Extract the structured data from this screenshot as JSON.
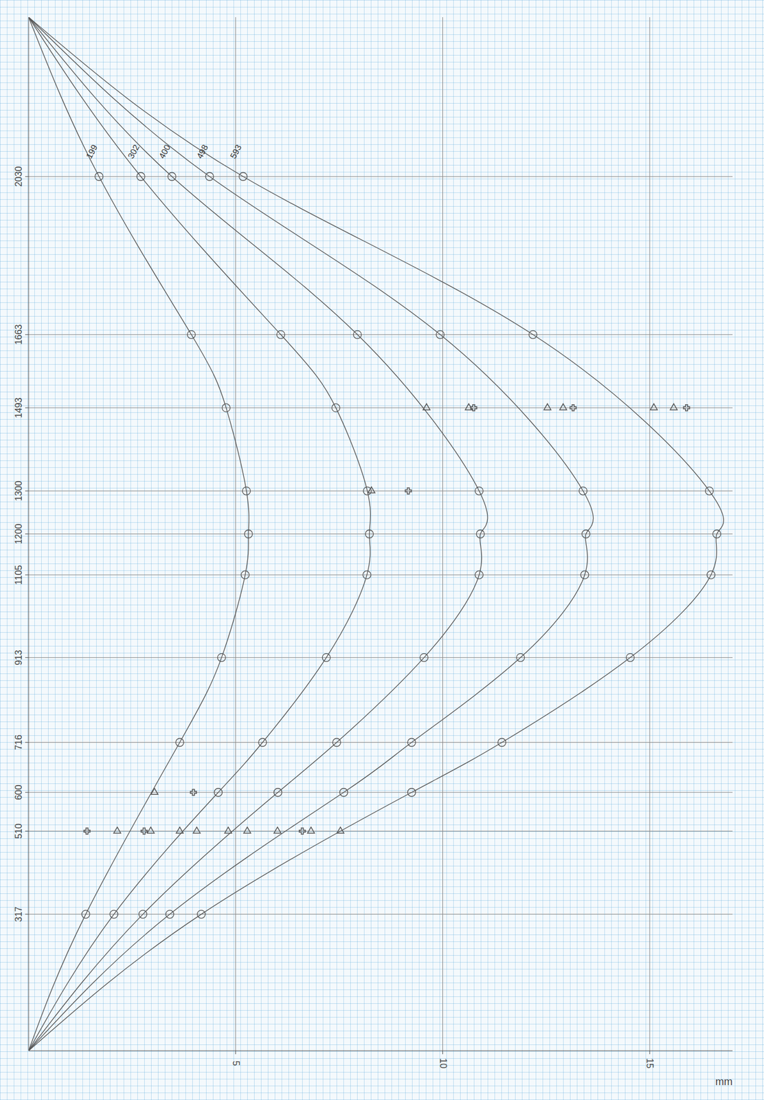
{
  "chart_data": {
    "type": "line",
    "x_label": "mm",
    "xlim": [
      0,
      17
    ],
    "xticks": [
      5,
      10,
      15
    ],
    "ylim": [
      0,
      2400
    ],
    "yticks": [
      317,
      510,
      600,
      716,
      913,
      1105,
      1200,
      1300,
      1493,
      1663,
      2030
    ],
    "grid": true,
    "series": [
      {
        "name": "199",
        "color": "#555555",
        "marker": "circle",
        "x": [
          0,
          1.38,
          3.65,
          4.66,
          5.23,
          5.31,
          5.26,
          4.77,
          3.93,
          1.7,
          0
        ],
        "values": [
          0,
          317,
          716,
          913,
          1105,
          1200,
          1300,
          1493,
          1663,
          2030,
          2400
        ]
      },
      {
        "name": "302",
        "color": "#555555",
        "marker": "circle",
        "x": [
          0,
          2.06,
          4.58,
          5.65,
          7.19,
          8.17,
          8.23,
          8.18,
          7.42,
          6.09,
          2.71,
          0
        ],
        "values": [
          0,
          317,
          600,
          716,
          913,
          1105,
          1200,
          1300,
          1493,
          1663,
          2030,
          2400
        ]
      },
      {
        "name": "400",
        "color": "#555555",
        "marker": "circle",
        "x": [
          0,
          2.76,
          6.02,
          7.44,
          9.55,
          10.88,
          10.91,
          10.88,
          7.94,
          3.46,
          0
        ],
        "values": [
          0,
          317,
          600,
          716,
          913,
          1105,
          1200,
          1300,
          1663,
          2030,
          2400
        ]
      },
      {
        "name": "498",
        "color": "#555555",
        "marker": "circle",
        "x": [
          0,
          3.41,
          7.61,
          9.25,
          11.88,
          13.43,
          13.46,
          13.39,
          9.94,
          4.37,
          0
        ],
        "values": [
          0,
          317,
          600,
          716,
          913,
          1105,
          1200,
          1300,
          1663,
          2030,
          2400
        ]
      },
      {
        "name": "593",
        "color": "#555555",
        "marker": "circle",
        "x": [
          0,
          4.17,
          9.25,
          11.43,
          14.53,
          16.48,
          16.62,
          16.44,
          12.18,
          5.18,
          0
        ],
        "values": [
          0,
          317,
          600,
          716,
          913,
          1105,
          1200,
          1300,
          1663,
          2030,
          2400
        ]
      },
      {
        "type": "scatter",
        "color": "#555555",
        "marker": "triangle",
        "x": [
          2.14,
          2.95,
          3.65,
          4.06,
          4.82,
          5.28,
          6.01,
          6.82,
          7.53,
          3.04,
          8.28,
          9.61,
          10.63,
          12.53,
          12.91,
          15.1,
          15.58
        ],
        "values": [
          510,
          510,
          510,
          510,
          510,
          510,
          510,
          510,
          510,
          600,
          1300,
          1493,
          1493,
          1493,
          1493,
          1493,
          1493
        ]
      },
      {
        "type": "scatter",
        "color": "#555555",
        "marker": "cross",
        "x": [
          1.41,
          2.79,
          6.61,
          3.98,
          9.17,
          10.75,
          13.15,
          15.89
        ],
        "values": [
          510,
          510,
          510,
          600,
          1300,
          1493,
          1493,
          1493
        ]
      }
    ]
  }
}
